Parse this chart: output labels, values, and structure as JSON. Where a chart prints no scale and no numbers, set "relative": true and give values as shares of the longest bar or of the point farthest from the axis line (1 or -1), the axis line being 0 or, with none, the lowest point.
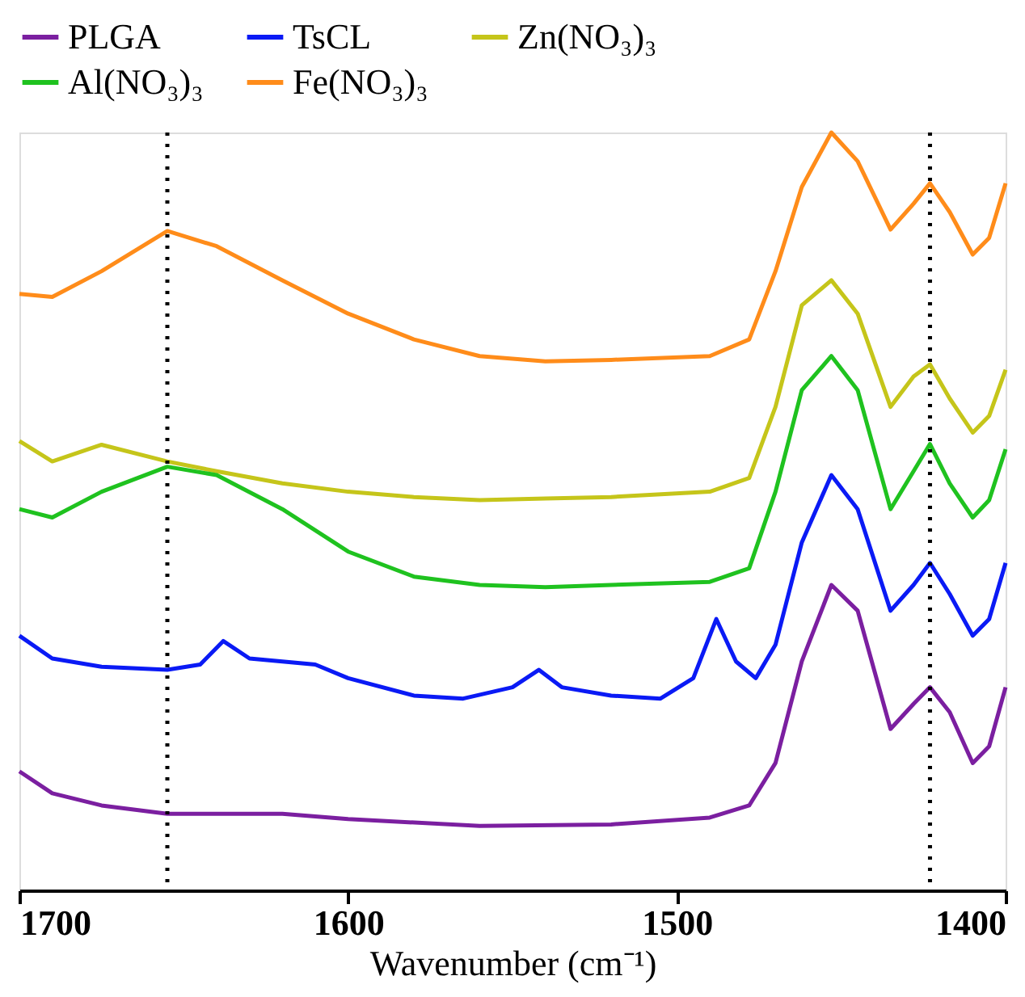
{
  "chart_data": {
    "type": "line",
    "relative": true,
    "xlabel": "Wavenumber (cm⁻¹)",
    "xlim": [
      1700,
      1400
    ],
    "xticks": [
      1700,
      1600,
      1500,
      1400
    ],
    "legend": "top",
    "grid": false,
    "tick_labels": "x",
    "line_style": "solid",
    "series": [
      {
        "name": "PLGA",
        "color": "#7b1fa0",
        "x": [
          1700,
          1690,
          1675,
          1655,
          1620,
          1600,
          1560,
          1520,
          1490,
          1478,
          1470,
          1462,
          1453,
          1445,
          1435,
          1428,
          1423,
          1417,
          1410,
          1405,
          1400
        ],
        "values": [
          0.157,
          0.128,
          0.112,
          0.101,
          0.101,
          0.094,
          0.085,
          0.087,
          0.096,
          0.112,
          0.168,
          0.302,
          0.403,
          0.369,
          0.213,
          0.246,
          0.268,
          0.235,
          0.168,
          0.19,
          0.268
        ]
      },
      {
        "name": "TsCL",
        "color": "#0a1af5",
        "x": [
          1700,
          1690,
          1675,
          1655,
          1645,
          1638,
          1630,
          1610,
          1600,
          1580,
          1565,
          1550,
          1542,
          1535,
          1520,
          1505,
          1495,
          1488,
          1482,
          1476,
          1470,
          1462,
          1453,
          1445,
          1435,
          1428,
          1423,
          1417,
          1410,
          1405,
          1400
        ],
        "values": [
          0.336,
          0.306,
          0.295,
          0.291,
          0.298,
          0.329,
          0.306,
          0.298,
          0.28,
          0.257,
          0.253,
          0.268,
          0.291,
          0.268,
          0.257,
          0.253,
          0.28,
          0.358,
          0.302,
          0.28,
          0.324,
          0.459,
          0.548,
          0.503,
          0.369,
          0.403,
          0.432,
          0.391,
          0.336,
          0.358,
          0.432
        ]
      },
      {
        "name": "Zn(NO₃)₃",
        "color": "#c5c51a",
        "x": [
          1700,
          1690,
          1675,
          1655,
          1640,
          1620,
          1600,
          1580,
          1560,
          1540,
          1520,
          1490,
          1478,
          1470,
          1462,
          1453,
          1445,
          1435,
          1428,
          1423,
          1417,
          1410,
          1405,
          1400
        ],
        "values": [
          0.593,
          0.566,
          0.588,
          0.566,
          0.553,
          0.537,
          0.526,
          0.519,
          0.515,
          0.517,
          0.519,
          0.526,
          0.544,
          0.638,
          0.772,
          0.805,
          0.761,
          0.638,
          0.678,
          0.694,
          0.649,
          0.604,
          0.626,
          0.687
        ]
      },
      {
        "name": "Al(NO₃)₃",
        "color": "#1fc21f",
        "x": [
          1700,
          1690,
          1675,
          1655,
          1640,
          1620,
          1600,
          1580,
          1560,
          1540,
          1520,
          1490,
          1478,
          1470,
          1462,
          1453,
          1445,
          1435,
          1428,
          1423,
          1417,
          1410,
          1405,
          1400
        ],
        "values": [
          0.503,
          0.492,
          0.526,
          0.559,
          0.548,
          0.503,
          0.447,
          0.414,
          0.403,
          0.4,
          0.403,
          0.407,
          0.425,
          0.526,
          0.66,
          0.705,
          0.66,
          0.503,
          0.553,
          0.589,
          0.537,
          0.492,
          0.515,
          0.582
        ]
      },
      {
        "name": "Fe(NO₃)₃",
        "color": "#ff8c1a",
        "x": [
          1700,
          1690,
          1675,
          1655,
          1640,
          1620,
          1600,
          1580,
          1560,
          1540,
          1520,
          1490,
          1478,
          1470,
          1462,
          1453,
          1445,
          1435,
          1428,
          1423,
          1417,
          1410,
          1405,
          1400
        ],
        "values": [
          0.787,
          0.783,
          0.817,
          0.87,
          0.85,
          0.805,
          0.761,
          0.727,
          0.705,
          0.698,
          0.7,
          0.705,
          0.727,
          0.817,
          0.928,
          1.0,
          0.962,
          0.872,
          0.906,
          0.933,
          0.895,
          0.839,
          0.861,
          0.933
        ]
      }
    ],
    "ref_lines": [
      {
        "axis": "x",
        "value": 1655,
        "color": "#000000",
        "line_style": "dotted"
      },
      {
        "axis": "x",
        "value": 1423,
        "color": "#000000",
        "line_style": "dotted"
      }
    ]
  }
}
